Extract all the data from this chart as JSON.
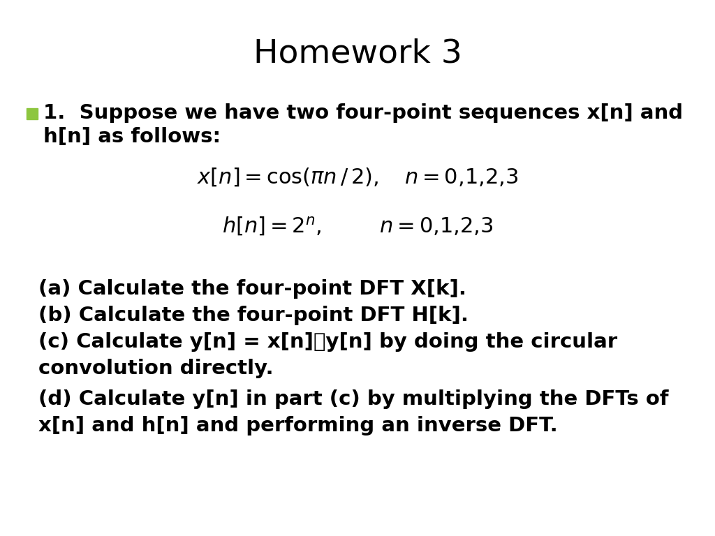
{
  "title": "Homework 3",
  "title_fontsize": 34,
  "background_color": "#ffffff",
  "bullet_color": "#8dc63f",
  "bullet_text_line1": "1.  Suppose we have two four-point sequences x[n] and",
  "bullet_text_line2": "h[n] as follows:",
  "body_fontsize": 21,
  "eq_fontsize": 20,
  "item_a": "(a) Calculate the four-point DFT X[k].",
  "item_b": "(b) Calculate the four-point DFT H[k].",
  "item_c1": "(c) Calculate y[n] = x[n]ⓔy[n] by doing the circular",
  "item_c2": "convolution directly.",
  "item_d1": "(d) Calculate y[n] in part (c) by multiplying the DFTs of",
  "item_d2": "x[n] and h[n] and performing an inverse DFT."
}
